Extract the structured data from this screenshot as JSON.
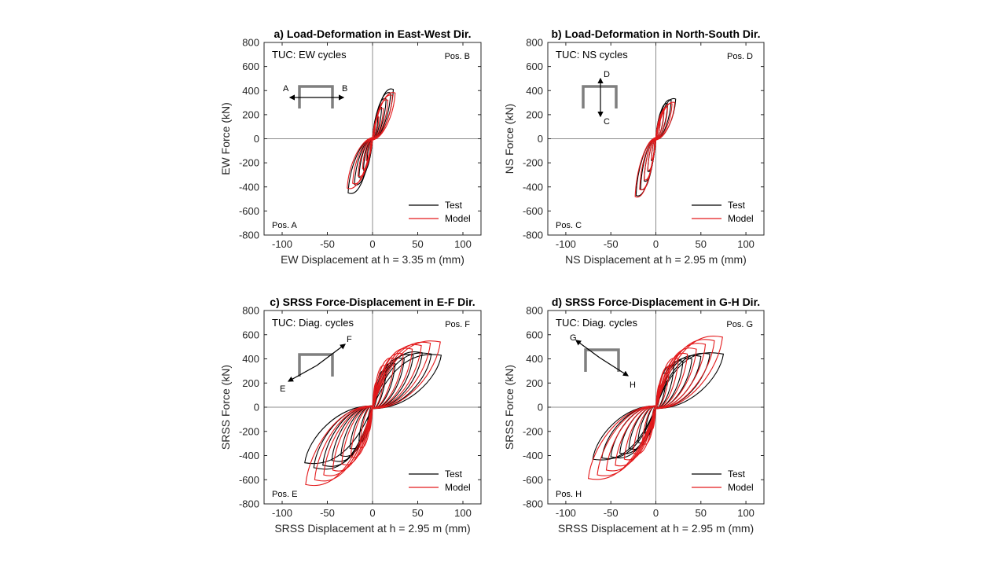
{
  "colors": {
    "test": "#000000",
    "model": "#e31a1c",
    "axis": "#262626",
    "zero_line": "#8c8c8c",
    "schematic": "#7f7f7f"
  },
  "chart_data": [
    {
      "type": "line",
      "title": "a) Load-Deformation in East-West Dir.",
      "xlabel": "EW Displacement at h = 3.35 m (mm)",
      "ylabel": "EW Force (kN)",
      "xlim": [
        -120,
        120
      ],
      "ylim": [
        -800,
        800
      ],
      "xticks": [
        -100,
        -50,
        0,
        50,
        100
      ],
      "yticks": [
        -800,
        -600,
        -400,
        -200,
        0,
        200,
        400,
        600,
        800
      ],
      "annotation": "TUC: EW cycles",
      "pos_top": "Pos. B",
      "pos_bottom": "Pos. A",
      "schematic": {
        "type": "horizontal",
        "end_a": "A",
        "end_b": "B"
      },
      "legend_placement": "bottom-right",
      "series": [
        {
          "name": "Test",
          "color": "#000000",
          "peaks_x": [
            -27,
            -20,
            -15,
            -10,
            -6,
            -3,
            3,
            6,
            10,
            15,
            20,
            23
          ],
          "peaks_y": [
            -450,
            -380,
            -320,
            -260,
            -190,
            -110,
            110,
            190,
            260,
            330,
            380,
            410
          ],
          "width": 0.18
        },
        {
          "name": "Model",
          "color": "#e31a1c",
          "peaks_x": [
            -28,
            -22,
            -16,
            -11,
            -7,
            -3,
            3,
            7,
            12,
            17,
            22,
            25
          ],
          "peaks_y": [
            -410,
            -370,
            -310,
            -250,
            -180,
            -100,
            100,
            180,
            250,
            320,
            360,
            380
          ],
          "width": 0.15
        }
      ]
    },
    {
      "type": "line",
      "title": "b) Load-Deformation in North-South Dir.",
      "xlabel": "NS Displacement at h = 2.95 m (mm)",
      "ylabel": "NS Force (kN)",
      "xlim": [
        -120,
        120
      ],
      "ylim": [
        -800,
        800
      ],
      "xticks": [
        -100,
        -50,
        0,
        50,
        100
      ],
      "yticks": [
        -800,
        -600,
        -400,
        -200,
        0,
        200,
        400,
        600,
        800
      ],
      "annotation": "TUC: NS cycles",
      "pos_top": "Pos. D",
      "pos_bottom": "Pos. C",
      "schematic": {
        "type": "vertical",
        "end_a": "D",
        "end_b": "C"
      },
      "legend_placement": "bottom-right",
      "series": [
        {
          "name": "Test",
          "color": "#000000",
          "peaks_x": [
            -22,
            -17,
            -13,
            -9,
            -5,
            -2,
            2,
            5,
            9,
            13,
            17,
            22
          ],
          "peaks_y": [
            -470,
            -420,
            -350,
            -270,
            -180,
            -100,
            100,
            170,
            240,
            290,
            320,
            330
          ],
          "width": 0.18
        },
        {
          "name": "Model",
          "color": "#e31a1c",
          "peaks_x": [
            -23,
            -18,
            -13,
            -9,
            -5,
            -2,
            2,
            5,
            9,
            13,
            18,
            21
          ],
          "peaks_y": [
            -480,
            -420,
            -340,
            -260,
            -170,
            -90,
            90,
            160,
            220,
            260,
            290,
            300
          ],
          "width": 0.15
        }
      ]
    },
    {
      "type": "line",
      "title": "c) SRSS Force-Displacement in E-F Dir.",
      "xlabel": "SRSS Displacement at h = 2.95 m (mm)",
      "ylabel": "SRSS Force (kN)",
      "xlim": [
        -120,
        120
      ],
      "ylim": [
        -800,
        800
      ],
      "xticks": [
        -100,
        -50,
        0,
        50,
        100
      ],
      "yticks": [
        -800,
        -600,
        -400,
        -200,
        0,
        200,
        400,
        600,
        800
      ],
      "annotation": "TUC: Diag. cycles",
      "pos_top": "Pos. F",
      "pos_bottom": "Pos. E",
      "schematic": {
        "type": "diagonal-up",
        "end_a": "F",
        "end_b": "E"
      },
      "legend_placement": "bottom-right",
      "series": [
        {
          "name": "Test",
          "color": "#000000",
          "peaks_x": [
            -75,
            -65,
            -55,
            -45,
            -35,
            -25,
            -15,
            -6,
            6,
            15,
            25,
            35,
            45,
            55,
            65,
            76
          ],
          "peaks_y": [
            -460,
            -500,
            -480,
            -440,
            -400,
            -340,
            -280,
            -180,
            180,
            300,
            360,
            400,
            430,
            450,
            440,
            430
          ],
          "width": 0.5
        },
        {
          "name": "Model",
          "color": "#e31a1c",
          "peaks_x": [
            -74,
            -64,
            -54,
            -44,
            -34,
            -24,
            -14,
            -5,
            5,
            14,
            24,
            34,
            44,
            54,
            64,
            75
          ],
          "peaks_y": [
            -640,
            -600,
            -560,
            -520,
            -470,
            -410,
            -330,
            -200,
            200,
            340,
            400,
            440,
            480,
            510,
            530,
            540
          ],
          "width": 0.45
        }
      ]
    },
    {
      "type": "line",
      "title": "d) SRSS Force-Displacement in G-H Dir.",
      "xlabel": "SRSS Displacement at h = 2.95 m (mm)",
      "ylabel": "SRSS Force (kN)",
      "xlim": [
        -120,
        120
      ],
      "ylim": [
        -800,
        800
      ],
      "xticks": [
        -100,
        -50,
        0,
        50,
        100
      ],
      "yticks": [
        -800,
        -600,
        -400,
        -200,
        0,
        200,
        400,
        600,
        800
      ],
      "annotation": "TUC: Diag. cycles",
      "pos_top": "Pos. G",
      "pos_bottom": "Pos. H",
      "schematic": {
        "type": "diagonal-down",
        "end_a": "G",
        "end_b": "H"
      },
      "legend_placement": "bottom-right",
      "series": [
        {
          "name": "Test",
          "color": "#000000",
          "peaks_x": [
            -70,
            -60,
            -50,
            -40,
            -30,
            -20,
            -12,
            -5,
            5,
            12,
            20,
            30,
            40,
            50,
            60,
            75
          ],
          "peaks_y": [
            -430,
            -420,
            -410,
            -380,
            -340,
            -290,
            -230,
            -150,
            160,
            280,
            340,
            380,
            400,
            420,
            440,
            440
          ],
          "width": 0.5
        },
        {
          "name": "Model",
          "color": "#e31a1c",
          "peaks_x": [
            -75,
            -65,
            -55,
            -45,
            -35,
            -25,
            -15,
            -5,
            5,
            15,
            25,
            35,
            45,
            55,
            65,
            74
          ],
          "peaks_y": [
            -590,
            -560,
            -520,
            -480,
            -430,
            -380,
            -300,
            -180,
            190,
            330,
            400,
            440,
            480,
            520,
            550,
            580
          ],
          "width": 0.45
        }
      ]
    }
  ]
}
